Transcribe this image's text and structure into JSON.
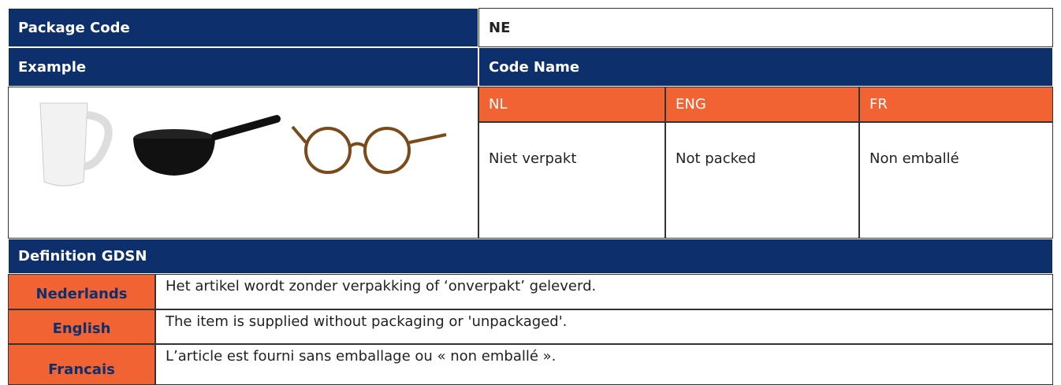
{
  "header": {
    "label": "Package Code",
    "value": "NE"
  },
  "example": {
    "label": "Example"
  },
  "code_name": {
    "label": "Code Name",
    "columns": [
      "NL",
      "ENG",
      "FR"
    ],
    "values": [
      "Niet verpakt",
      "Not packed",
      "Non emballé"
    ]
  },
  "definition": {
    "title": "Definition GDSN",
    "rows": [
      {
        "language": "Nederlands",
        "text": "Het artikel wordt zonder verpakking of ‘onverpakt’ geleverd."
      },
      {
        "language": "English",
        "text": "The item is supplied without packaging or 'unpackaged'."
      },
      {
        "language": "Francais",
        "text": "L’article est fourni sans emballage ou « non emballé »."
      }
    ]
  }
}
